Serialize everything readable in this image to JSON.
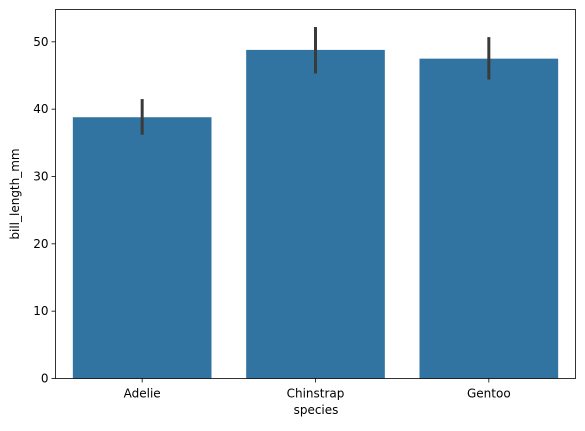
{
  "chart_data": {
    "type": "bar",
    "title": "",
    "xlabel": "species",
    "ylabel": "bill_length_mm",
    "categories": [
      "Adelie",
      "Chinstrap",
      "Gentoo"
    ],
    "values": [
      38.8,
      48.8,
      47.5
    ],
    "error_low": [
      36.2,
      45.3,
      44.4
    ],
    "error_high": [
      41.5,
      52.2,
      50.7
    ],
    "ylim": [
      0,
      54.8
    ],
    "yticks": [
      0,
      10,
      20,
      30,
      40,
      50
    ],
    "grid": false,
    "colors": {
      "bar": "#3274a1",
      "errorbar": "#3a3a3a",
      "axis": "#000000"
    }
  }
}
